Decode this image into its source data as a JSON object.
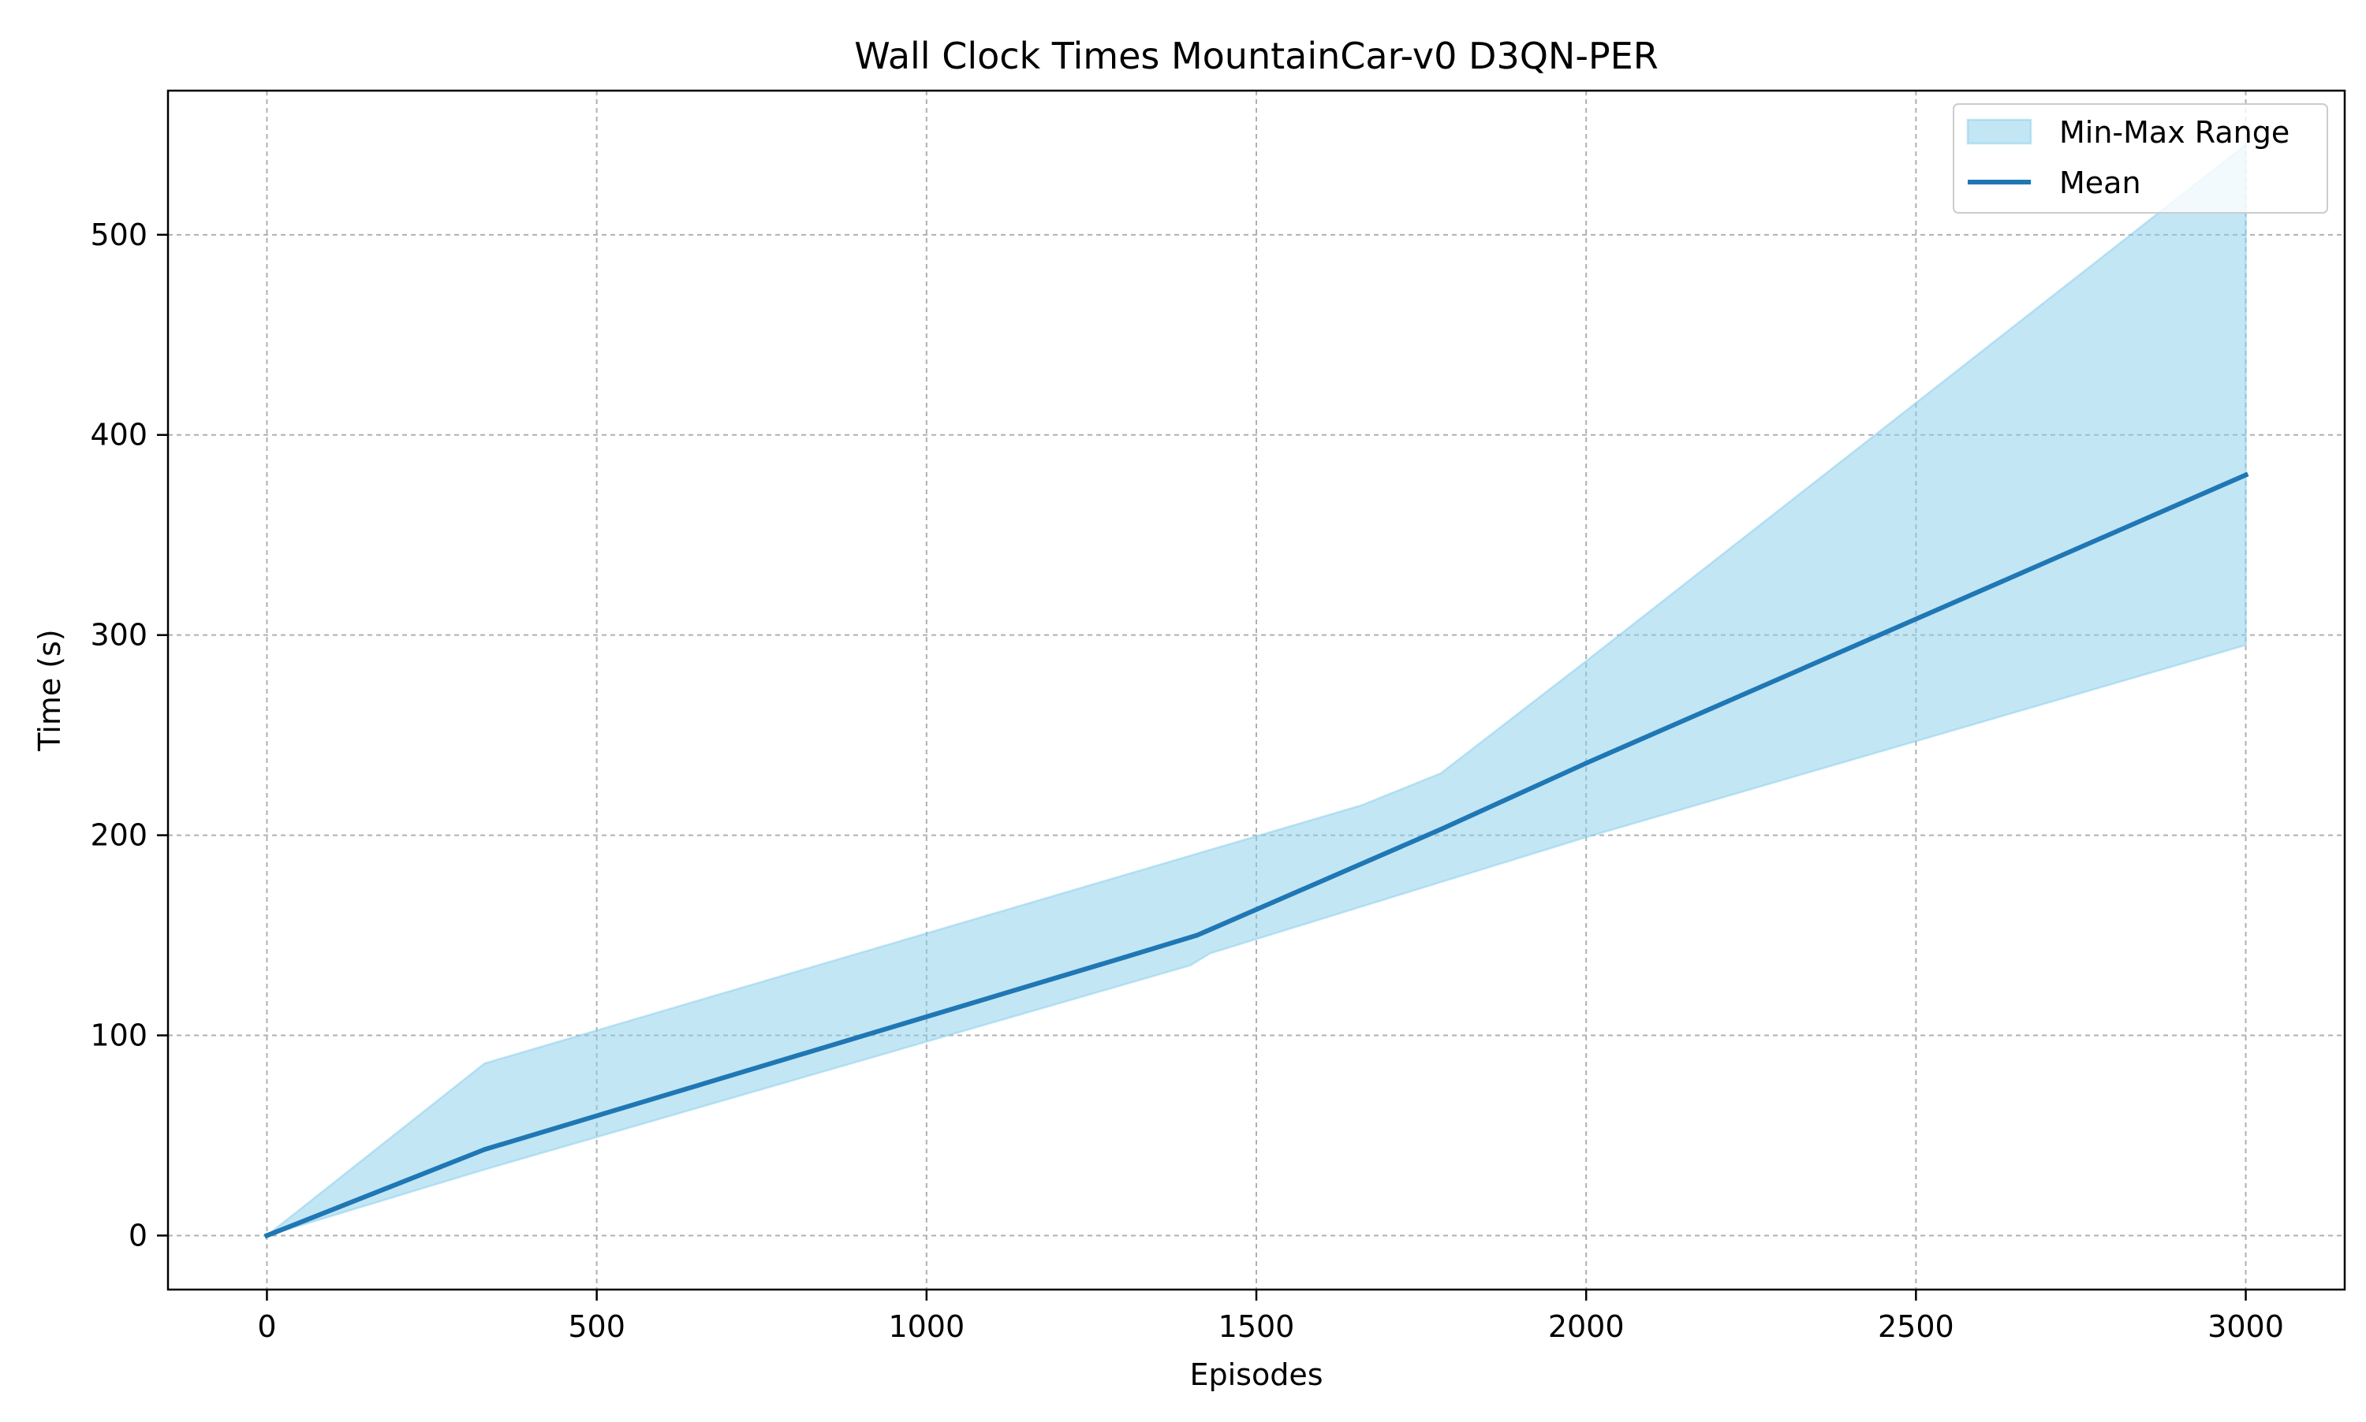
{
  "chart_data": {
    "type": "line",
    "title": "Wall Clock Times MountainCar-v0 D3QN-PER",
    "xlabel": "Episodes",
    "ylabel": "Time (s)",
    "xlim": [
      -150,
      3150
    ],
    "ylim": [
      -27,
      572
    ],
    "xticks": [
      0,
      500,
      1000,
      1500,
      2000,
      2500,
      3000
    ],
    "yticks": [
      0,
      100,
      200,
      300,
      400,
      500
    ],
    "grid": true,
    "legend_position": "top-right",
    "x": [
      0,
      330,
      1300,
      1410,
      1780,
      2000,
      3000
    ],
    "series": [
      {
        "name": "Mean",
        "kind": "line",
        "color": "#1f77b4",
        "values": [
          0,
          43,
          139,
          150,
          203,
          236,
          380
        ]
      }
    ],
    "band": {
      "name": "Min-Max Range",
      "kind": "fill_between",
      "color": "#87ceeb",
      "upper_x": [
        0,
        330,
        1660,
        1780,
        2000,
        3000
      ],
      "upper": [
        0,
        86,
        215,
        231,
        287,
        545
      ],
      "lower_x": [
        0,
        330,
        1400,
        1430,
        2000,
        3000
      ],
      "lower": [
        0,
        33,
        135,
        141,
        199,
        295
      ]
    }
  }
}
